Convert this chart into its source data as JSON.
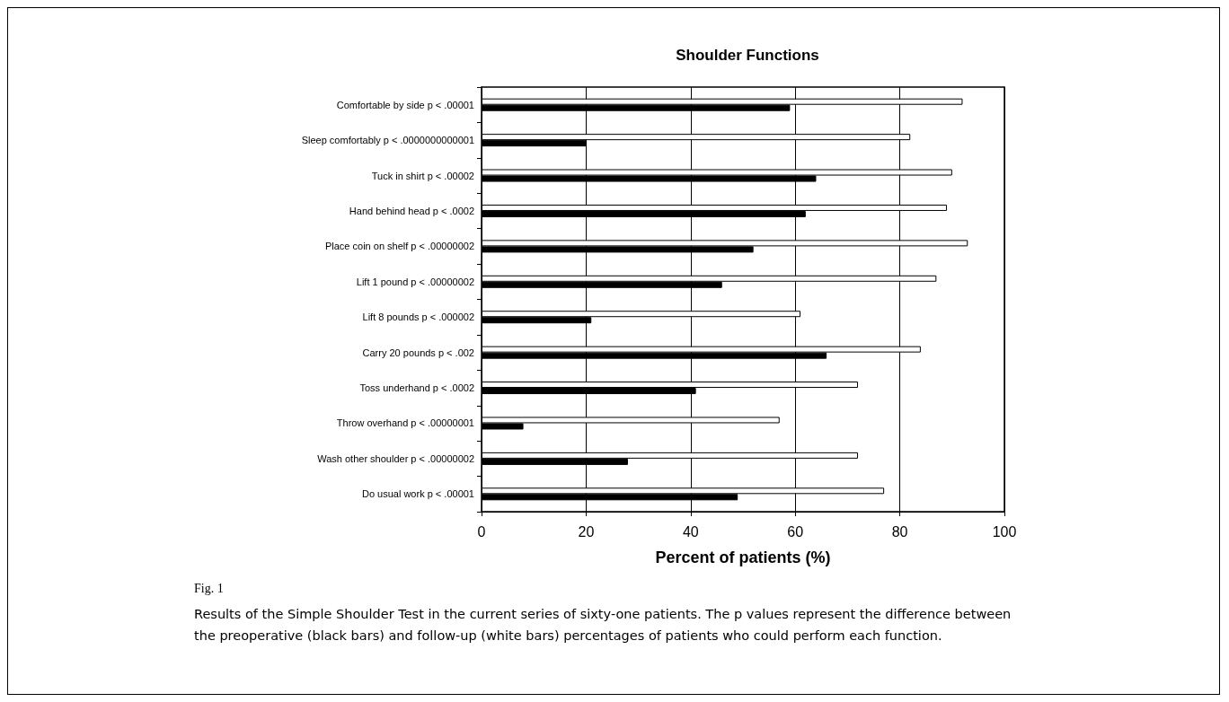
{
  "chart_data": {
    "type": "bar",
    "orientation": "horizontal",
    "title": "Shoulder Functions",
    "xlabel": "Percent of patients (%)",
    "categories": [
      "Comfortable by side p < .00001",
      "Sleep comfortably p < .0000000000001",
      "Tuck in shirt p < .00002",
      "Hand behind head p < .0002",
      "Place coin on shelf p < .00000002",
      "Lift 1 pound p < .00000002",
      "Lift 8 pounds p < .000002",
      "Carry 20 pounds p < .002",
      "Toss underhand p < .0002",
      "Throw overhand p < .00000001",
      "Wash other shoulder p < .00000002",
      "Do usual work p < .00001"
    ],
    "series": [
      {
        "color": "#ffffff",
        "values": [
          92,
          82,
          90,
          89,
          93,
          87,
          61,
          84,
          72,
          57,
          72,
          77
        ]
      },
      {
        "color": "#000000",
        "values": [
          59,
          20,
          64,
          62,
          52,
          46,
          21,
          66,
          41,
          8,
          28,
          49
        ]
      }
    ],
    "xlim": [
      0,
      100
    ],
    "xticks": [
      0,
      20,
      40,
      60,
      80,
      100
    ],
    "grid": "x",
    "annotations": [
      "Fig. 1",
      "Results of the Simple Shoulder Test in the current series of sixty-one patients. The p values represent the difference between the preoperative (black bars) and follow-up (white bars) percentages of patients who could perform each function."
    ]
  }
}
